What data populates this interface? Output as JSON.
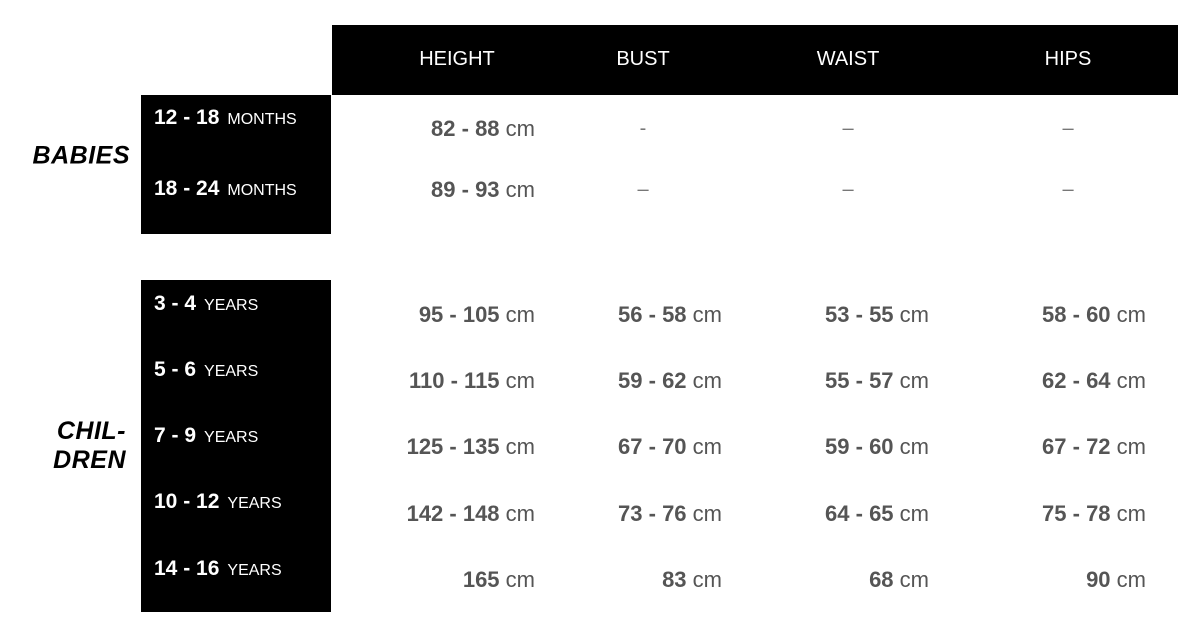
{
  "headers": [
    "HEIGHT",
    "BUST",
    "WAIST",
    "HIPS"
  ],
  "groups": [
    {
      "label": "BABIES",
      "rows": [
        {
          "range": "12 - 18",
          "unit": "MONTHS",
          "height": {
            "v": "82 - 88",
            "u": "cm"
          },
          "bust": "-",
          "waist": "–",
          "hips": "–"
        },
        {
          "range": "18 - 24",
          "unit": "MONTHS",
          "height": {
            "v": "89 - 93",
            "u": "cm"
          },
          "bust": "–",
          "waist": "–",
          "hips": "–"
        }
      ]
    },
    {
      "label_line1": "CHIL-",
      "label_line2": "DREN",
      "rows": [
        {
          "range": "3 - 4",
          "unit": "YEARS",
          "height": {
            "v": "95 - 105",
            "u": "cm"
          },
          "bust": {
            "v": "56 - 58",
            "u": "cm"
          },
          "waist": {
            "v": "53 - 55",
            "u": "cm"
          },
          "hips": {
            "v": "58 - 60",
            "u": "cm"
          }
        },
        {
          "range": "5 - 6",
          "unit": "YEARS",
          "height": {
            "v": "110 - 115",
            "u": "cm"
          },
          "bust": {
            "v": "59 - 62",
            "u": "cm"
          },
          "waist": {
            "v": "55 - 57",
            "u": "cm"
          },
          "hips": {
            "v": "62 - 64",
            "u": "cm"
          }
        },
        {
          "range": "7 - 9",
          "unit": "YEARS",
          "height": {
            "v": "125 - 135",
            "u": "cm"
          },
          "bust": {
            "v": "67 - 70",
            "u": "cm"
          },
          "waist": {
            "v": "59 - 60",
            "u": "cm"
          },
          "hips": {
            "v": "67 - 72",
            "u": "cm"
          }
        },
        {
          "range": "10 - 12",
          "unit": "YEARS",
          "height": {
            "v": "142 - 148",
            "u": "cm"
          },
          "bust": {
            "v": "73 - 76",
            "u": "cm"
          },
          "waist": {
            "v": "64 - 65",
            "u": "cm"
          },
          "hips": {
            "v": "75 - 78",
            "u": "cm"
          }
        },
        {
          "range": "14 - 16",
          "unit": "YEARS",
          "height": {
            "v": "165",
            "u": "cm"
          },
          "bust": {
            "v": "83",
            "u": "cm"
          },
          "waist": {
            "v": "68",
            "u": "cm"
          },
          "hips": {
            "v": "90",
            "u": "cm"
          }
        }
      ]
    }
  ]
}
